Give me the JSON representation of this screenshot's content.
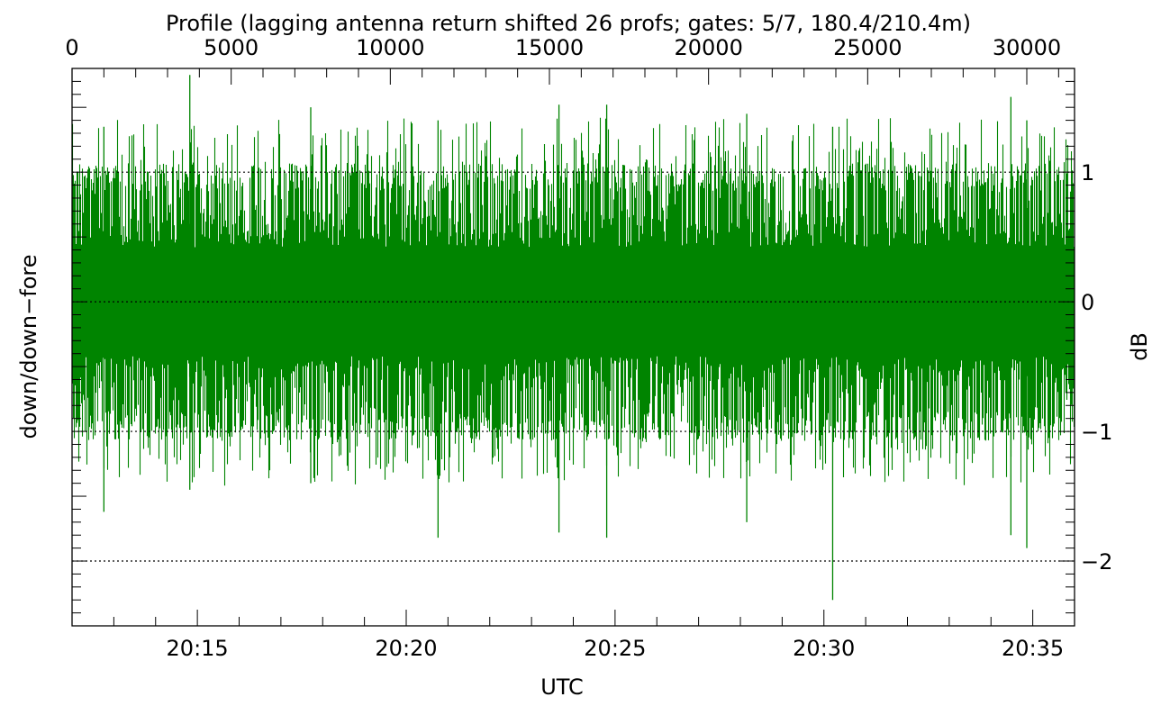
{
  "chart_data": {
    "type": "line",
    "title": "Profile (lagging antenna return shifted 26 profs; gates: 5/7, 180.4/210.4m)",
    "xlabel": "UTC",
    "ylabel_left": "down/down−fore",
    "ylabel_right": "dB",
    "x_range_minutes": [
      732.0,
      756.0
    ],
    "x_bottom_ticks": [
      {
        "label": "20:15",
        "minute": 735
      },
      {
        "label": "20:20",
        "minute": 740
      },
      {
        "label": "20:25",
        "minute": 745
      },
      {
        "label": "20:30",
        "minute": 750
      },
      {
        "label": "20:35",
        "minute": 755
      }
    ],
    "x_top_range": [
      0,
      31500
    ],
    "x_top_ticks": [
      "0",
      "5000",
      "10000",
      "15000",
      "20000",
      "25000",
      "30000"
    ],
    "ylim": [
      -2.5,
      1.8
    ],
    "y_right_ticks": [
      "1",
      "0",
      "−1",
      "−2"
    ],
    "reference_lines_y": [
      1,
      0,
      -1,
      -2
    ],
    "series": [
      {
        "color": "#008400",
        "description": "dense noise",
        "bulk_range": [
          -0.95,
          0.95
        ],
        "spike_envelope": [
          {
            "profile": 1000,
            "min": -1.62,
            "max": 1.35
          },
          {
            "profile": 3700,
            "min": -1.45,
            "max": 1.75
          },
          {
            "profile": 7500,
            "min": -1.4,
            "max": 1.5
          },
          {
            "profile": 11500,
            "min": -1.82,
            "max": 1.4
          },
          {
            "profile": 15300,
            "min": -1.78,
            "max": 1.52
          },
          {
            "profile": 16800,
            "min": -1.82,
            "max": 1.52
          },
          {
            "profile": 21200,
            "min": -1.7,
            "max": 1.45
          },
          {
            "profile": 23900,
            "min": -2.3,
            "max": 1.35
          },
          {
            "profile": 29500,
            "min": -1.8,
            "max": 1.58
          },
          {
            "profile": 30000,
            "min": -1.9,
            "max": 1.4
          }
        ]
      }
    ]
  }
}
